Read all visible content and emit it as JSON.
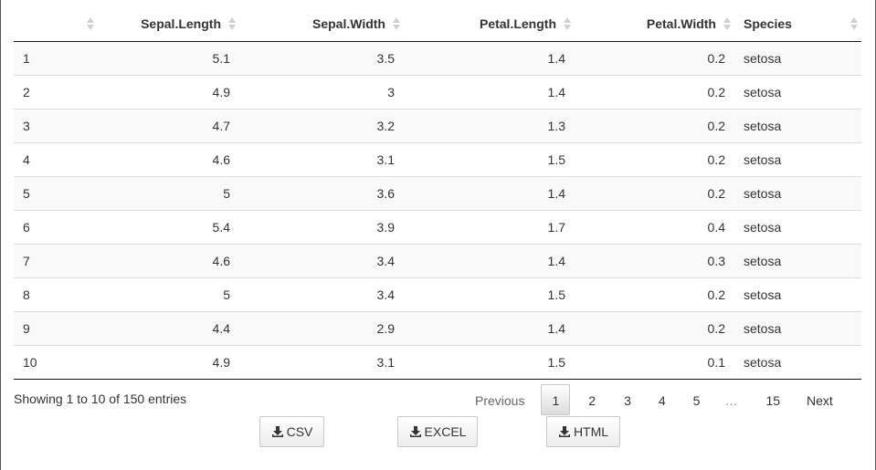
{
  "table": {
    "columns": [
      "",
      "Sepal.Length",
      "Sepal.Width",
      "Petal.Length",
      "Petal.Width",
      "Species"
    ],
    "rows": [
      [
        "1",
        "5.1",
        "3.5",
        "1.4",
        "0.2",
        "setosa"
      ],
      [
        "2",
        "4.9",
        "3",
        "1.4",
        "0.2",
        "setosa"
      ],
      [
        "3",
        "4.7",
        "3.2",
        "1.3",
        "0.2",
        "setosa"
      ],
      [
        "4",
        "4.6",
        "3.1",
        "1.5",
        "0.2",
        "setosa"
      ],
      [
        "5",
        "5",
        "3.6",
        "1.4",
        "0.2",
        "setosa"
      ],
      [
        "6",
        "5.4",
        "3.9",
        "1.7",
        "0.4",
        "setosa"
      ],
      [
        "7",
        "4.6",
        "3.4",
        "1.4",
        "0.3",
        "setosa"
      ],
      [
        "8",
        "5",
        "3.4",
        "1.5",
        "0.2",
        "setosa"
      ],
      [
        "9",
        "4.4",
        "2.9",
        "1.4",
        "0.2",
        "setosa"
      ],
      [
        "10",
        "4.9",
        "3.1",
        "1.5",
        "0.1",
        "setosa"
      ]
    ]
  },
  "info": "Showing 1 to 10 of 150 entries",
  "pagination": {
    "previous": "Previous",
    "pages": [
      "1",
      "2",
      "3",
      "4",
      "5",
      "…",
      "15"
    ],
    "current": "1",
    "next": "Next"
  },
  "buttons": {
    "csv": "CSV",
    "excel": "EXCEL",
    "html": "HTML"
  },
  "icons": {
    "sort": "sort-both-icon",
    "download": "download-icon"
  }
}
